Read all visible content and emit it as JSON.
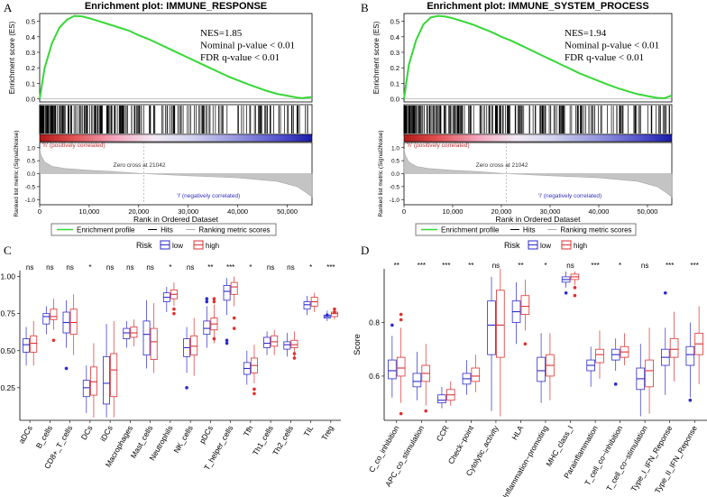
{
  "chart_data": [
    {
      "panel": "A",
      "type": "line",
      "title": "Enrichment plot: IMMUNE_RESPONSE",
      "ylabel_top": "Enrichment score (ES)",
      "ylabel_bottom": "Ranked list metric (Signal2Noise)",
      "xlabel": "Rank in Ordered Dataset",
      "es_yticks": [
        "0.5",
        "0.4",
        "0.3",
        "0.2",
        "0.1",
        "0.0"
      ],
      "metric_yticks": [
        "1.0",
        "0.5",
        "0.0",
        "-0.5",
        "-1.0"
      ],
      "xticks": [
        "0",
        "10,000",
        "20,000",
        "30,000",
        "40,000",
        "50,000"
      ],
      "xlim": [
        0,
        55000
      ],
      "es_curve": {
        "x": [
          0,
          1000,
          2500,
          4000,
          5500,
          7000,
          8500,
          10000,
          12000,
          14000,
          16000,
          18000,
          20000,
          22000,
          24000,
          26000,
          28000,
          30000,
          32000,
          34000,
          36000,
          38000,
          40000,
          42000,
          44000,
          46000,
          48000,
          50000,
          52000,
          53000,
          55000
        ],
        "y": [
          0.0,
          0.2,
          0.36,
          0.46,
          0.51,
          0.535,
          0.532,
          0.52,
          0.5,
          0.48,
          0.46,
          0.44,
          0.41,
          0.385,
          0.355,
          0.325,
          0.295,
          0.265,
          0.235,
          0.205,
          0.175,
          0.145,
          0.12,
          0.095,
          0.072,
          0.05,
          0.032,
          0.02,
          0.008,
          0.005,
          0.012
        ]
      },
      "metric_curve": {
        "x": [
          0,
          300,
          1000,
          2500,
          5000,
          10000,
          15000,
          21042,
          30000,
          40000,
          48000,
          52000,
          54000,
          55000
        ],
        "y": [
          0.95,
          0.7,
          0.45,
          0.28,
          0.2,
          0.13,
          0.08,
          0.0,
          -0.08,
          -0.16,
          -0.3,
          -0.5,
          -0.75,
          -0.9
        ]
      },
      "zero_cross": 21042,
      "stats": [
        "NES=1.85",
        "Nominal p-value < 0.01",
        "FDR q-value < 0.01"
      ],
      "pos_label": "'h' (positively correlated)",
      "neg_label": "'l' (negatively correlated)",
      "zero_label": "Zero cross at 21042",
      "legend": [
        "Enrichment profile",
        "Hits",
        "Ranking metric scores"
      ]
    },
    {
      "panel": "B",
      "type": "line",
      "title": "Enrichment plot: IMMUNE_SYSTEM_PROCESS",
      "ylabel_top": "Enrichment score (ES)",
      "ylabel_bottom": "Ranked list metric (Signal2Noise)",
      "xlabel": "Rank in Ordered Dataset",
      "es_yticks": [
        "0.5",
        "0.4",
        "0.3",
        "0.2",
        "0.1",
        "0.0"
      ],
      "metric_yticks": [
        "1.0",
        "0.5",
        "0.0",
        "-0.5",
        "-1.0"
      ],
      "xticks": [
        "0",
        "10,000",
        "20,000",
        "30,000",
        "40,000",
        "50,000"
      ],
      "xlim": [
        0,
        55000
      ],
      "es_curve": {
        "x": [
          0,
          1000,
          2500,
          4000,
          5500,
          7000,
          8500,
          10000,
          12000,
          14000,
          16000,
          18000,
          20000,
          22000,
          24000,
          26000,
          28000,
          30000,
          32000,
          34000,
          36000,
          38000,
          40000,
          42000,
          44000,
          46000,
          48000,
          50000,
          52000,
          53500,
          55000
        ],
        "y": [
          0.0,
          0.22,
          0.38,
          0.48,
          0.525,
          0.535,
          0.53,
          0.52,
          0.5,
          0.48,
          0.455,
          0.43,
          0.4,
          0.375,
          0.345,
          0.315,
          0.285,
          0.255,
          0.225,
          0.195,
          0.165,
          0.14,
          0.115,
          0.09,
          0.068,
          0.048,
          0.03,
          0.018,
          0.006,
          0.004,
          0.022
        ]
      },
      "metric_curve": {
        "x": [
          0,
          300,
          1000,
          2500,
          5000,
          10000,
          15000,
          21042,
          30000,
          40000,
          48000,
          52000,
          54000,
          55000
        ],
        "y": [
          0.95,
          0.7,
          0.45,
          0.28,
          0.2,
          0.13,
          0.08,
          0.0,
          -0.08,
          -0.16,
          -0.3,
          -0.5,
          -0.75,
          -0.9
        ]
      },
      "zero_cross": 21042,
      "stats": [
        "NES=1.94",
        "Nominal p-value < 0.01",
        "FDR q-value < 0.01"
      ],
      "pos_label": "'h' (positively correlated)",
      "neg_label": "'l' (negatively correlated)",
      "zero_label": "Zero cross at 21042",
      "legend": [
        "Enrichment profile",
        "Hits",
        "Ranking metric scores"
      ]
    },
    {
      "panel": "C",
      "type": "boxplot",
      "legend_title": "Risk",
      "groups": [
        "low",
        "high"
      ],
      "colors": {
        "low": "#2b2bcc",
        "high": "#e03030"
      },
      "ylim": [
        0.03,
        1.04
      ],
      "yticks": [
        "1.00",
        "0.75",
        "0.50",
        "0.25"
      ],
      "ylabel": "",
      "categories": [
        "aDCs",
        "B_cells",
        "CD8+_T_cells",
        "DCs",
        "iDCs",
        "Macrophages",
        "Mast_cells",
        "Neutrophils",
        "NK_cells",
        "pDCs",
        "T_helper_cells",
        "Tfh",
        "Th1_cells",
        "Th2_cells",
        "TIL",
        "Treg"
      ],
      "significance": [
        "ns",
        "ns",
        "ns",
        "*",
        "ns",
        "ns",
        "ns",
        "*",
        "ns",
        "**",
        "***",
        "*",
        "ns",
        "ns",
        "*",
        "***"
      ],
      "boxes": {
        "low": [
          [
            0.4,
            0.49,
            0.54,
            0.58,
            0.66
          ],
          [
            0.61,
            0.68,
            0.73,
            0.75,
            0.8
          ],
          [
            0.52,
            0.62,
            0.69,
            0.76,
            0.84
          ],
          [
            0.08,
            0.19,
            0.25,
            0.3,
            0.4
          ],
          [
            0.05,
            0.14,
            0.28,
            0.46,
            0.68
          ],
          [
            0.52,
            0.58,
            0.62,
            0.65,
            0.7
          ],
          [
            0.38,
            0.47,
            0.61,
            0.7,
            0.84
          ],
          [
            0.76,
            0.83,
            0.86,
            0.89,
            0.93
          ],
          [
            0.35,
            0.46,
            0.52,
            0.58,
            0.66
          ],
          [
            0.52,
            0.61,
            0.65,
            0.7,
            0.8
          ],
          [
            0.74,
            0.84,
            0.9,
            0.94,
            0.99
          ],
          [
            0.27,
            0.34,
            0.38,
            0.42,
            0.5
          ],
          [
            0.47,
            0.52,
            0.55,
            0.59,
            0.63
          ],
          [
            0.46,
            0.51,
            0.54,
            0.56,
            0.62
          ],
          [
            0.74,
            0.78,
            0.81,
            0.83,
            0.87
          ],
          [
            0.7,
            0.72,
            0.73,
            0.74,
            0.77
          ]
        ],
        "high": [
          [
            0.4,
            0.49,
            0.55,
            0.6,
            0.7
          ],
          [
            0.64,
            0.71,
            0.73,
            0.78,
            0.85
          ],
          [
            0.47,
            0.61,
            0.69,
            0.78,
            0.88
          ],
          [
            0.05,
            0.2,
            0.29,
            0.39,
            0.55
          ],
          [
            0.05,
            0.19,
            0.37,
            0.48,
            0.7
          ],
          [
            0.53,
            0.59,
            0.62,
            0.66,
            0.71
          ],
          [
            0.35,
            0.44,
            0.56,
            0.65,
            0.82
          ],
          [
            0.8,
            0.85,
            0.88,
            0.91,
            0.96
          ],
          [
            0.33,
            0.47,
            0.53,
            0.6,
            0.72
          ],
          [
            0.55,
            0.64,
            0.68,
            0.72,
            0.81
          ],
          [
            0.8,
            0.88,
            0.93,
            0.96,
            1.0
          ],
          [
            0.28,
            0.35,
            0.4,
            0.45,
            0.54
          ],
          [
            0.47,
            0.53,
            0.56,
            0.6,
            0.64
          ],
          [
            0.46,
            0.52,
            0.54,
            0.57,
            0.63
          ],
          [
            0.76,
            0.8,
            0.83,
            0.86,
            0.89
          ],
          [
            0.71,
            0.73,
            0.75,
            0.76,
            0.79
          ]
        ]
      },
      "outliers": {
        "low": [
          [],
          [],
          [
            0.38
          ],
          [],
          [],
          [],
          [],
          [],
          [
            0.25
          ],
          [
            0.85,
            0.83
          ],
          [
            0.57,
            0.55
          ],
          [],
          [],
          [],
          [],
          [
            0.74
          ]
        ],
        "high": [
          [],
          [
            0.57
          ],
          [],
          [],
          [],
          [],
          [],
          [
            0.75,
            0.78
          ],
          [],
          [
            0.85,
            0.83,
            0.58
          ],
          [
            0.72,
            0.65
          ],
          [
            0.24,
            0.21
          ],
          [],
          [
            0.48,
            0.45
          ],
          [],
          [
            0.76,
            0.78
          ]
        ]
      }
    },
    {
      "panel": "D",
      "type": "boxplot",
      "legend_title": "Risk",
      "groups": [
        "low",
        "high"
      ],
      "colors": {
        "low": "#2b2bcc",
        "high": "#e03030"
      },
      "ylim": [
        0.435,
        1.0
      ],
      "yticks": [
        "0.8",
        "0.6"
      ],
      "ylabel": "Score",
      "categories": [
        "C_co_inhibition",
        "APC_co_stimulation",
        "CCR",
        "Check−point",
        "Cytolytic_activity",
        "HLA",
        "Inflammation−promoting",
        "MHC_class_I",
        "Parainflammation",
        "T_cell_co−inhibition",
        "T_cell_co−stimulation",
        "Type_I_IFN_Reponse",
        "Type_II_IFN_Reponse"
      ],
      "significance": [
        "**",
        "***",
        "***",
        "**",
        "ns",
        "**",
        "*",
        "ns",
        "***",
        "*",
        "ns",
        "***",
        "***"
      ],
      "boxes": {
        "low": [
          [
            0.52,
            0.59,
            0.62,
            0.66,
            0.75
          ],
          [
            0.51,
            0.56,
            0.58,
            0.61,
            0.69
          ],
          [
            0.48,
            0.5,
            0.51,
            0.53,
            0.56
          ],
          [
            0.53,
            0.57,
            0.59,
            0.61,
            0.66
          ],
          [
            0.47,
            0.68,
            0.79,
            0.88,
            0.97
          ],
          [
            0.72,
            0.8,
            0.84,
            0.88,
            0.95
          ],
          [
            0.5,
            0.58,
            0.62,
            0.67,
            0.76
          ],
          [
            0.93,
            0.95,
            0.96,
            0.97,
            0.99
          ],
          [
            0.56,
            0.62,
            0.64,
            0.66,
            0.71
          ],
          [
            0.62,
            0.66,
            0.68,
            0.7,
            0.74
          ],
          [
            0.45,
            0.55,
            0.59,
            0.63,
            0.72
          ],
          [
            0.53,
            0.64,
            0.67,
            0.7,
            0.78
          ],
          [
            0.52,
            0.64,
            0.68,
            0.71,
            0.8
          ]
        ],
        "high": [
          [
            0.5,
            0.6,
            0.63,
            0.67,
            0.78
          ],
          [
            0.49,
            0.58,
            0.61,
            0.64,
            0.72
          ],
          [
            0.49,
            0.51,
            0.53,
            0.55,
            0.58
          ],
          [
            0.54,
            0.58,
            0.6,
            0.63,
            0.68
          ],
          [
            0.45,
            0.67,
            0.79,
            0.92,
            1.0
          ],
          [
            0.77,
            0.83,
            0.86,
            0.9,
            0.96
          ],
          [
            0.51,
            0.6,
            0.64,
            0.68,
            0.76
          ],
          [
            0.94,
            0.96,
            0.97,
            0.98,
            0.99
          ],
          [
            0.59,
            0.65,
            0.68,
            0.7,
            0.77
          ],
          [
            0.64,
            0.67,
            0.69,
            0.71,
            0.76
          ],
          [
            0.46,
            0.56,
            0.62,
            0.66,
            0.78
          ],
          [
            0.58,
            0.67,
            0.7,
            0.74,
            0.84
          ],
          [
            0.57,
            0.68,
            0.72,
            0.76,
            0.86
          ]
        ]
      },
      "outliers": {
        "low": [
          [
            0.79
          ],
          [],
          [],
          [],
          [],
          [],
          [],
          [
            0.91
          ],
          [],
          [
            0.57
          ],
          [],
          [
            0.91
          ],
          [
            0.51
          ]
        ],
        "high": [
          [
            0.83,
            0.81,
            0.46
          ],
          [
            0.47
          ],
          [],
          [],
          [],
          [
            0.72
          ],
          [],
          [
            0.93,
            0.9
          ],
          [],
          [],
          [],
          [],
          []
        ]
      }
    }
  ]
}
